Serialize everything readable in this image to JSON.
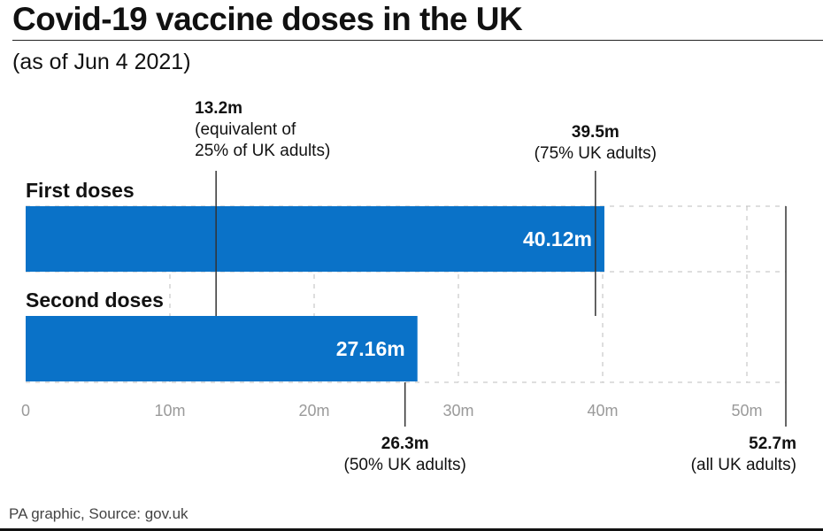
{
  "title": "Covid-19 vaccine doses in the UK",
  "subtitle": "(as of Jun 4 2021)",
  "source": "PA graphic, Source: gov.uk",
  "colors": {
    "bar": "#0a72c8",
    "text": "#111111",
    "tick_label": "#9a9a9a",
    "grid": "#bdbdbd",
    "marker_line": "#333333"
  },
  "chart_data": {
    "type": "bar",
    "orientation": "horizontal",
    "unit": "millions",
    "categories": [
      "First doses",
      "Second doses"
    ],
    "values": [
      40.12,
      27.16
    ],
    "value_labels": [
      "40.12m",
      "27.16m"
    ],
    "xlim": [
      0,
      52.7
    ],
    "x_ticks": [
      0,
      10,
      20,
      30,
      40,
      50
    ],
    "x_tick_labels": [
      "0",
      "10m",
      "20m",
      "30m",
      "40m",
      "50m"
    ],
    "grid": true,
    "reference_lines": [
      {
        "value": 13.2,
        "label": "13.2m",
        "note": [
          "(equivalent of",
          "25% of UK adults)"
        ],
        "label_position": "top"
      },
      {
        "value": 39.5,
        "label": "39.5m",
        "note": [
          "(75% UK adults)"
        ],
        "label_position": "top"
      },
      {
        "value": 26.3,
        "label": "26.3m",
        "note": [
          "(50% UK adults)"
        ],
        "label_position": "bottom"
      },
      {
        "value": 52.7,
        "label": "52.7m",
        "note": [
          "(all UK adults)"
        ],
        "label_position": "bottom"
      }
    ]
  }
}
